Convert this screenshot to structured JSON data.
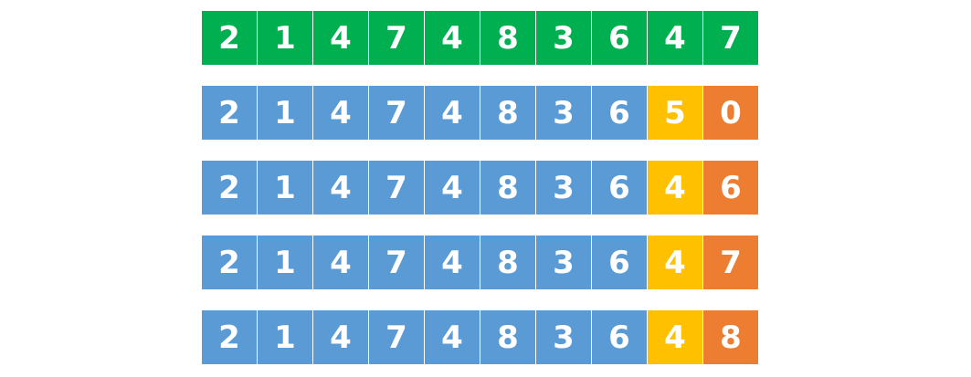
{
  "colors": {
    "top": "#00b050",
    "base": "#5b9bd5",
    "accent1": "#ffc000",
    "accent2": "#ed7d31"
  },
  "rows": [
    {
      "style": "top",
      "digits": [
        "2",
        "1",
        "4",
        "7",
        "4",
        "8",
        "3",
        "6",
        "4",
        "7"
      ]
    },
    {
      "style": "candidate",
      "digits": [
        "2",
        "1",
        "4",
        "7",
        "4",
        "8",
        "3",
        "6",
        "5",
        "0"
      ]
    },
    {
      "style": "candidate",
      "digits": [
        "2",
        "1",
        "4",
        "7",
        "4",
        "8",
        "3",
        "6",
        "4",
        "6"
      ]
    },
    {
      "style": "candidate",
      "digits": [
        "2",
        "1",
        "4",
        "7",
        "4",
        "8",
        "3",
        "6",
        "4",
        "7"
      ]
    },
    {
      "style": "candidate",
      "digits": [
        "2",
        "1",
        "4",
        "7",
        "4",
        "8",
        "3",
        "6",
        "4",
        "8"
      ]
    }
  ]
}
